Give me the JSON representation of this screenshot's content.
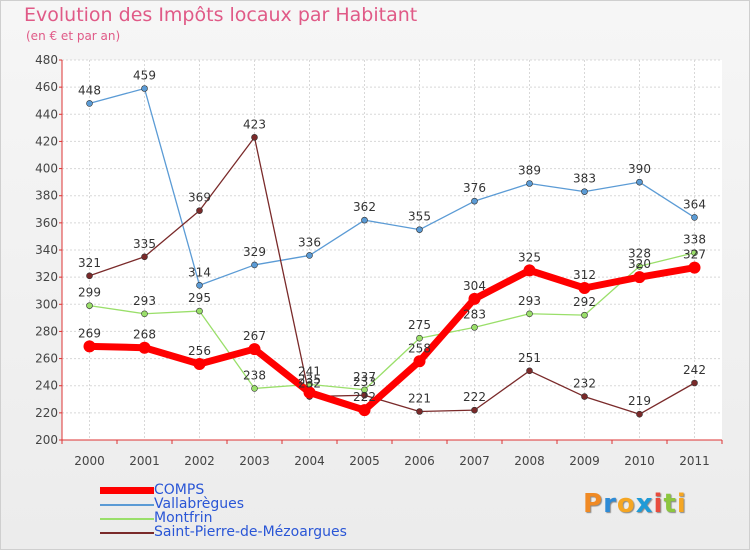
{
  "header": {
    "title": "Evolution des Impôts locaux par Habitant",
    "subtitle": "(en € et par an)"
  },
  "logo": {
    "letters": [
      "P",
      "r",
      "o",
      "x",
      "i",
      "t",
      "i"
    ],
    "colors": [
      "#f08a24",
      "#2e8bd6",
      "#f5a623",
      "#1f9bd7",
      "#e84c3d",
      "#8cc63f",
      "#f5a623"
    ]
  },
  "chart_data": {
    "type": "line",
    "title": "Evolution des Impôts locaux par Habitant",
    "subtitle": "(en € et par an)",
    "xlabel": "",
    "ylabel": "",
    "x": [
      "2000",
      "2001",
      "2002",
      "2003",
      "2004",
      "2005",
      "2006",
      "2007",
      "2008",
      "2009",
      "2010",
      "2011"
    ],
    "ylim": [
      200,
      480
    ],
    "yticks": [
      200,
      220,
      240,
      260,
      280,
      300,
      320,
      340,
      360,
      380,
      400,
      420,
      440,
      460,
      480
    ],
    "grid": true,
    "legend_position": "bottom-left",
    "series": [
      {
        "name": "COMPS",
        "color": "#ff0000",
        "width": 7,
        "marker": 6,
        "values": [
          269,
          268,
          256,
          267,
          235,
          222,
          258,
          304,
          325,
          312,
          320,
          327
        ],
        "labels": [
          "269",
          "268",
          "256",
          "267",
          "235",
          "222",
          "258",
          "304",
          "325",
          "312",
          "320",
          "327"
        ]
      },
      {
        "name": "Vallabrègues",
        "color": "#5b9bd5",
        "width": 1.3,
        "marker": 3,
        "values": [
          448,
          459,
          314,
          329,
          336,
          362,
          355,
          376,
          389,
          383,
          390,
          364
        ],
        "labels": [
          "448",
          "459",
          "314",
          "329",
          "336",
          "362",
          "355",
          "376",
          "389",
          "383",
          "390",
          "364"
        ]
      },
      {
        "name": "Montfrin",
        "color": "#9adf6a",
        "width": 1.3,
        "marker": 3,
        "values": [
          299,
          293,
          295,
          238,
          241,
          237,
          275,
          283,
          293,
          292,
          328,
          338
        ],
        "labels": [
          "299",
          "293",
          "295",
          "238",
          "241",
          "237",
          "275",
          "283",
          "293",
          "292",
          "328",
          "338"
        ]
      },
      {
        "name": "Saint-Pierre-de-Mézoargues",
        "color": "#7a2a2a",
        "width": 1.3,
        "marker": 3,
        "values": [
          321,
          335,
          369,
          423,
          232,
          233,
          221,
          222,
          251,
          232,
          219,
          242
        ],
        "labels": [
          "321",
          "335",
          "369",
          "423",
          "232",
          "233",
          "221",
          "222",
          "251",
          "232",
          "219",
          "242"
        ]
      }
    ]
  }
}
